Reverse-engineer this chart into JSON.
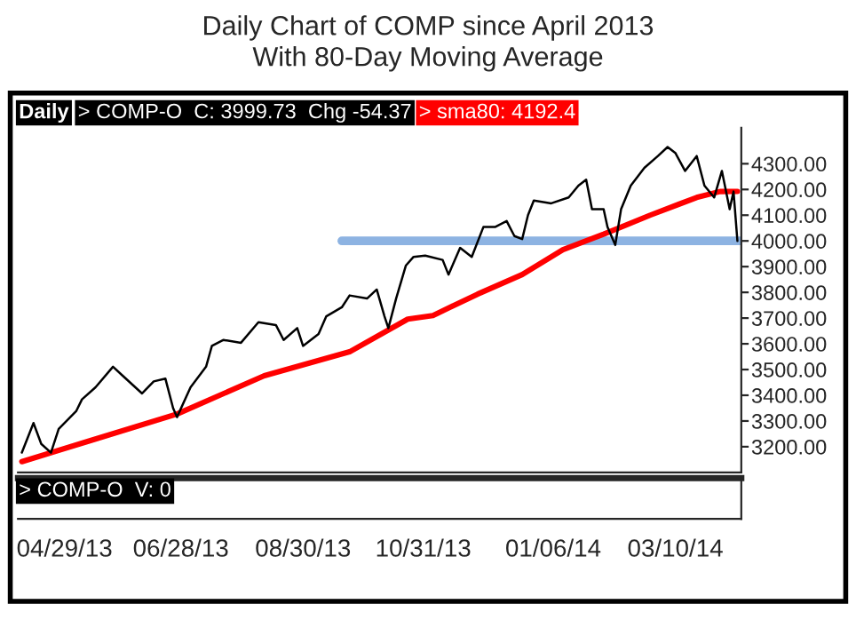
{
  "chart_data": {
    "type": "line",
    "title": "Daily Chart of COMP since April 2013",
    "subtitle": "With 80-Day Moving Average",
    "annotations": [
      "Daily",
      "> COMP-O  C: 3999.73  Chg -54.37",
      "> sma80: 4192.4",
      "> COMP-O  V: 0"
    ],
    "series": [
      {
        "color": "#000000",
        "x": [
          "2013-04-07",
          "2013-04-13",
          "2013-04-17",
          "2013-04-22",
          "2013-04-26",
          "2013-05-05",
          "2013-05-08",
          "2013-05-15",
          "2013-05-24",
          "2013-05-29",
          "2013-06-08",
          "2013-06-14",
          "2013-06-20",
          "2013-06-24",
          "2013-06-26",
          "2013-07-03",
          "2013-07-11",
          "2013-07-14",
          "2013-07-20",
          "2013-07-29",
          "2013-08-07",
          "2013-08-16",
          "2013-08-20",
          "2013-08-27",
          "2013-08-30",
          "2013-09-07",
          "2013-09-11",
          "2013-09-19",
          "2013-09-23",
          "2013-10-02",
          "2013-10-07",
          "2013-10-11",
          "2013-10-13",
          "2013-10-17",
          "2013-10-22",
          "2013-10-26",
          "2013-11-01",
          "2013-11-10",
          "2013-11-13",
          "2013-11-19",
          "2013-11-25",
          "2013-12-01",
          "2013-12-07",
          "2013-12-13",
          "2013-12-17",
          "2013-12-21",
          "2013-12-24",
          "2013-12-27",
          "2014-01-05",
          "2014-01-14",
          "2014-01-19",
          "2014-01-23",
          "2014-01-26",
          "2014-02-01",
          "2014-02-03",
          "2014-02-07",
          "2014-02-10",
          "2014-02-15",
          "2014-02-22",
          "2014-03-01",
          "2014-03-06",
          "2014-03-10",
          "2014-03-15",
          "2014-03-21",
          "2014-03-25",
          "2014-03-30",
          "2014-04-03",
          "2014-04-07",
          "2014-04-09",
          "2014-04-11"
        ],
        "values": [
          3177,
          3292,
          3211,
          3177,
          3269,
          3338,
          3384,
          3431,
          3511,
          3476,
          3407,
          3454,
          3465,
          3350,
          3315,
          3431,
          3511,
          3592,
          3615,
          3604,
          3684,
          3673,
          3615,
          3661,
          3592,
          3638,
          3707,
          3742,
          3788,
          3776,
          3811,
          3707,
          3661,
          3776,
          3904,
          3938,
          3943,
          3926,
          3869,
          3973,
          3938,
          4054,
          4054,
          4077,
          4019,
          4007,
          4100,
          4157,
          4146,
          4169,
          4215,
          4238,
          4123,
          4123,
          4054,
          3984,
          4123,
          4215,
          4284,
          4330,
          4365,
          4342,
          4272,
          4330,
          4215,
          4169,
          4272,
          4123,
          4192,
          3999.73
        ]
      },
      {
        "color": "#ff0000",
        "x": [
          "2013-04-07",
          "2013-05-12",
          "2013-06-26",
          "2013-08-10",
          "2013-09-23",
          "2013-10-23",
          "2013-11-05",
          "2013-11-28",
          "2013-12-21",
          "2014-01-11",
          "2014-02-01",
          "2014-02-25",
          "2014-03-21",
          "2014-04-02",
          "2014-04-11"
        ],
        "values": [
          3142,
          3223,
          3327,
          3476,
          3569,
          3696,
          3710,
          3793,
          3869,
          3966,
          4026,
          4100,
          4169,
          4192,
          4192.4
        ]
      },
      {
        "color": "#8db3e2",
        "x": [
          "2013-09-19",
          "2014-04-13"
        ],
        "values": [
          4000,
          4000
        ]
      }
    ],
    "xlim": [
      "2013-04-05",
      "2014-04-13"
    ],
    "ylim": [
      3100,
      4440
    ],
    "xticks": [
      {
        "value": "2013-04-29",
        "label": "04/29/13"
      },
      {
        "value": "2013-06-28",
        "label": "06/28/13"
      },
      {
        "value": "2013-08-30",
        "label": "08/30/13"
      },
      {
        "value": "2013-10-31",
        "label": "10/31/13"
      },
      {
        "value": "2014-01-06",
        "label": "01/06/14"
      },
      {
        "value": "2014-03-10",
        "label": "03/10/14"
      }
    ],
    "yticks": [
      {
        "value": 3200,
        "label": "3200.00"
      },
      {
        "value": 3300,
        "label": "3300.00"
      },
      {
        "value": 3400,
        "label": "3400.00"
      },
      {
        "value": 3500,
        "label": "3500.00"
      },
      {
        "value": 3600,
        "label": "3600.00"
      },
      {
        "value": 3700,
        "label": "3700.00"
      },
      {
        "value": 3800,
        "label": "3800.00"
      },
      {
        "value": 3900,
        "label": "3900.00"
      },
      {
        "value": 4000,
        "label": "4000.00"
      },
      {
        "value": 4100,
        "label": "4100.00"
      },
      {
        "value": 4200,
        "label": "4200.00"
      },
      {
        "value": 4300,
        "label": "4300.00"
      }
    ],
    "grid": false,
    "legend": false,
    "marker": "none",
    "line_style": "solid"
  }
}
